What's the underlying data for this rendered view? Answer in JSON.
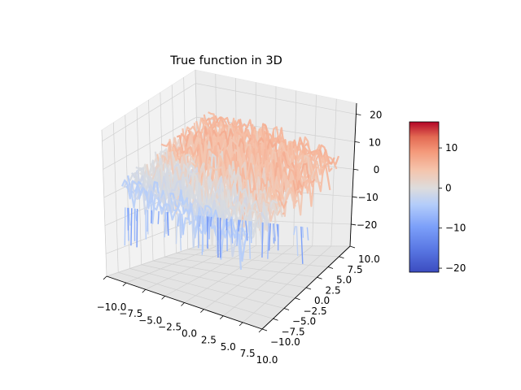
{
  "chart_data": {
    "type": "surface3d",
    "title": "True function in 3D",
    "x": {
      "range": [
        -10,
        10
      ],
      "ticks": [
        "−10.0",
        "−7.5",
        "−5.0",
        "−2.5",
        "0.0",
        "2.5",
        "5.0",
        "7.5",
        "10.0"
      ]
    },
    "y": {
      "range": [
        -10,
        10
      ],
      "ticks": [
        "−10.0",
        "−7.5",
        "−5.0",
        "−2.5",
        "0.0",
        "2.5",
        "5.0",
        "7.5",
        "10.0"
      ]
    },
    "z": {
      "range": [
        -28,
        24
      ],
      "ticks": [
        "20",
        "10",
        "0",
        "−10",
        "−20"
      ]
    },
    "colorbar": {
      "range": [
        -21,
        16.5
      ],
      "colormap": "coolwarm",
      "ticks": [
        "10",
        "0",
        "−10",
        "−20"
      ]
    },
    "grid": true,
    "pane_color": "#f0f0f0"
  }
}
